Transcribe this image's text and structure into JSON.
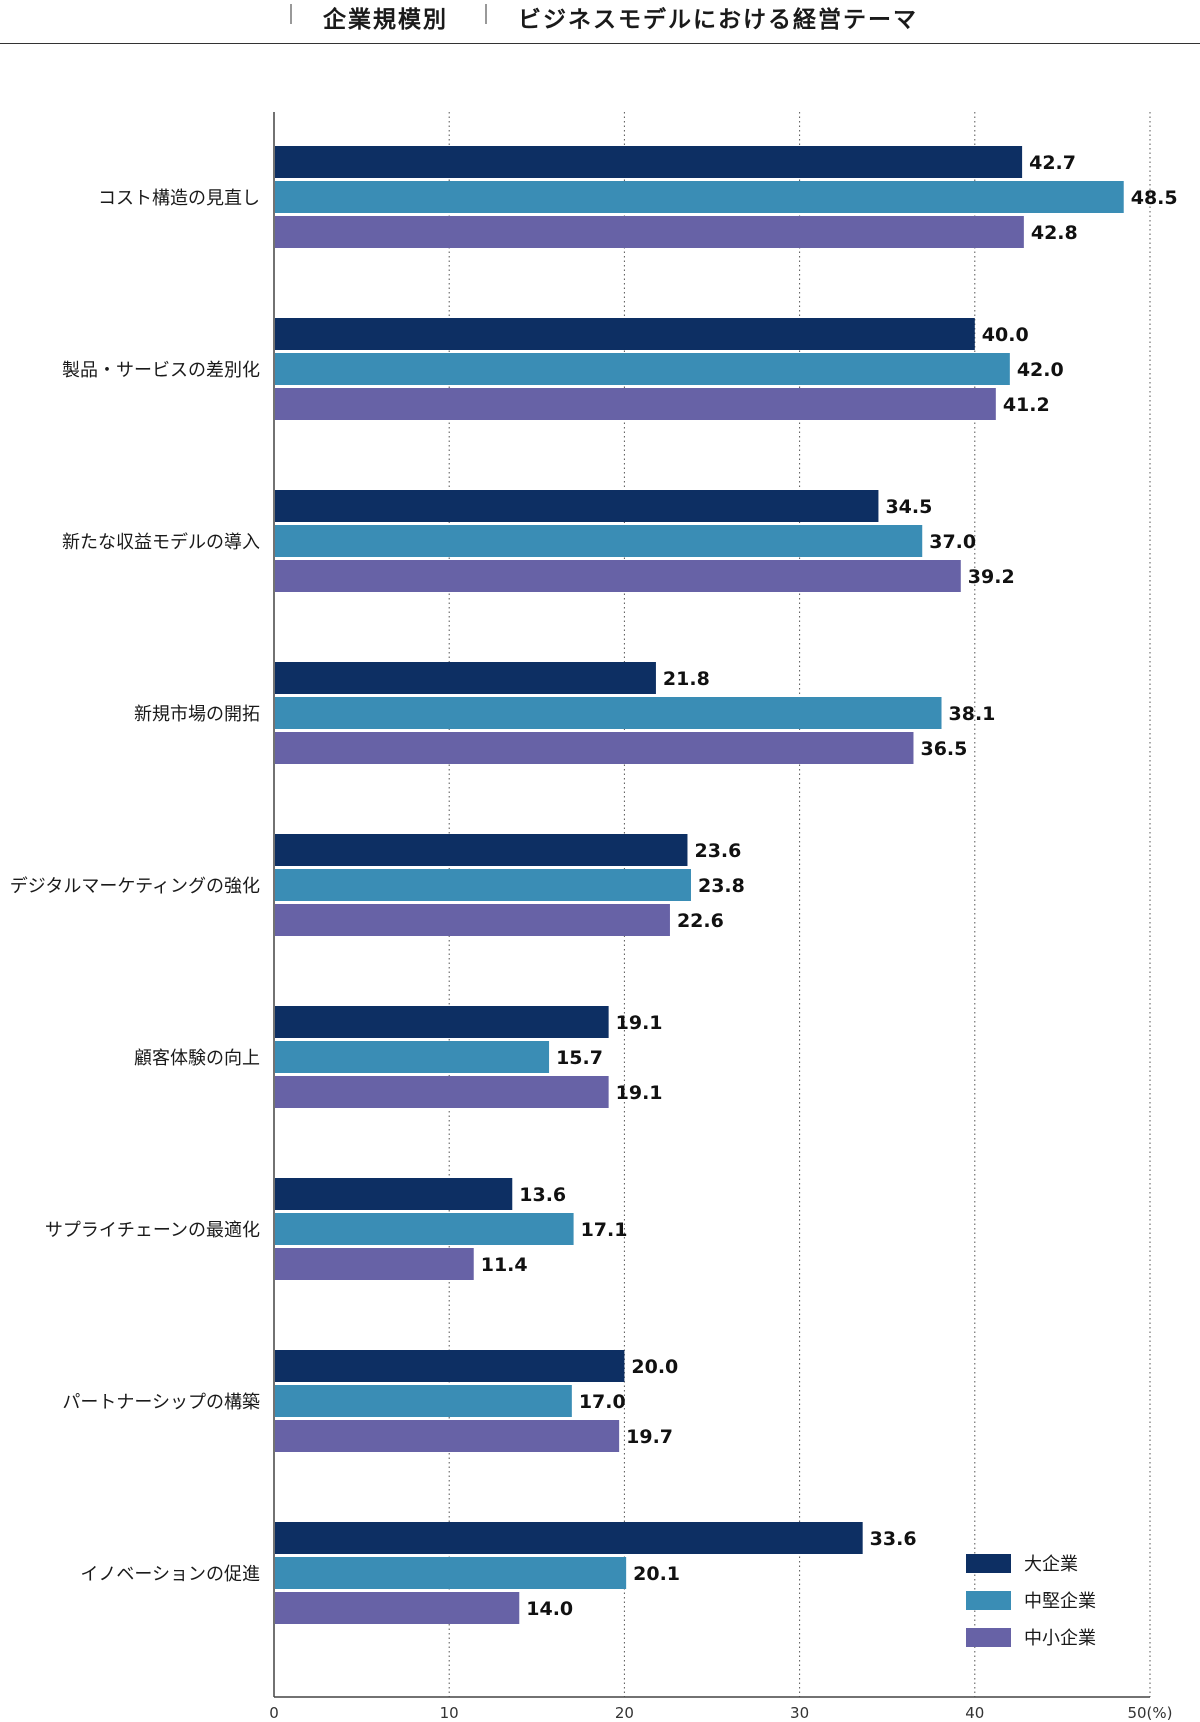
{
  "header": {
    "section": "企業規模別",
    "title": "ビジネスモデルにおける経営テーマ"
  },
  "chart_data": {
    "type": "bar",
    "orientation": "horizontal",
    "categories": [
      "コスト構造の見直し",
      "製品・サービスの差別化",
      "新たな収益モデルの導入",
      "新規市場の開拓",
      "デジタルマーケティングの強化",
      "顧客体験の向上",
      "サプライチェーンの最適化",
      "パートナーシップの構築",
      "イノベーションの促進"
    ],
    "series": [
      {
        "name": "大企業",
        "color": "#0d2f63",
        "values": [
          42.7,
          40.0,
          34.5,
          21.8,
          23.6,
          19.1,
          13.6,
          20.0,
          33.6
        ]
      },
      {
        "name": "中堅企業",
        "color": "#3a8db5",
        "values": [
          48.5,
          42.0,
          37.0,
          38.1,
          23.8,
          15.7,
          17.1,
          17.0,
          20.1
        ]
      },
      {
        "name": "中小企業",
        "color": "#6762a6",
        "values": [
          42.8,
          41.2,
          39.2,
          36.5,
          22.6,
          19.1,
          11.4,
          19.7,
          14.0
        ]
      }
    ],
    "xlim": [
      0,
      50
    ],
    "ticks": [
      0,
      10,
      20,
      30,
      40,
      50
    ],
    "tick_labels": [
      "0",
      "10",
      "20",
      "30",
      "40",
      "50(%)"
    ],
    "grid": true,
    "grid_style": "dotted",
    "legend_position": "bottom-right",
    "title": "ビジネスモデルにおける経営テーマ"
  }
}
